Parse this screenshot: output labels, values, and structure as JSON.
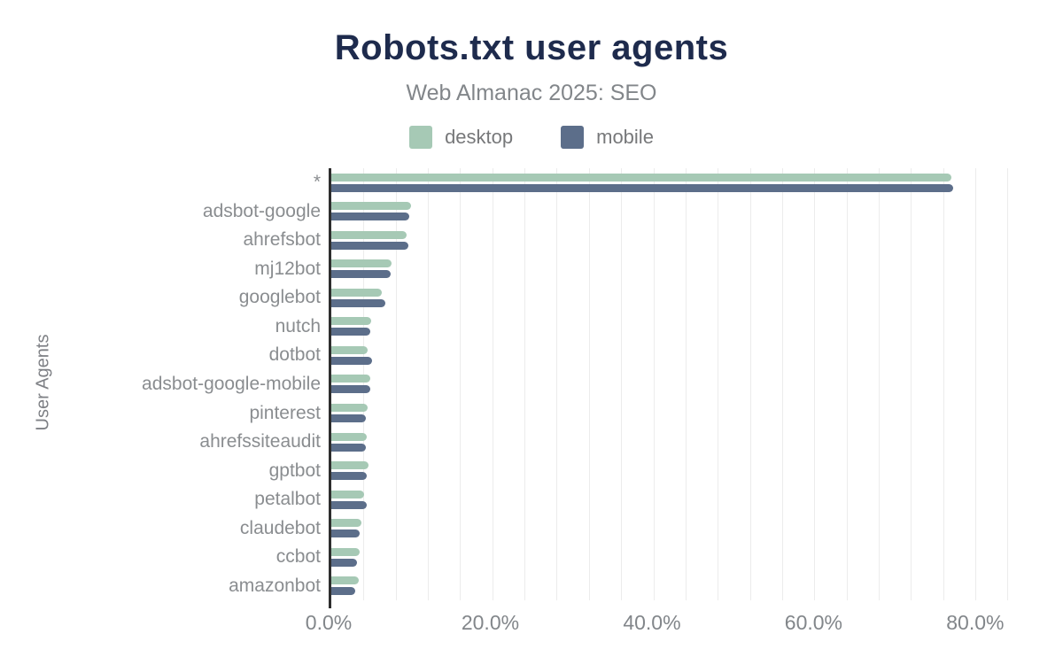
{
  "chart_data": {
    "type": "bar",
    "orientation": "horizontal",
    "title": "Robots.txt user agents",
    "subtitle": "Web Almanac 2025: SEO",
    "ylabel": "User Agents",
    "xlabel": "",
    "categories": [
      "*",
      "adsbot-google",
      "ahrefsbot",
      "mj12bot",
      "googlebot",
      "nutch",
      "dotbot",
      "adsbot-google-mobile",
      "pinterest",
      "ahrefssiteaudit",
      "gptbot",
      "petalbot",
      "claudebot",
      "ccbot",
      "amazonbot"
    ],
    "series": [
      {
        "name": "desktop",
        "color": "#a6c9b5",
        "values": [
          77.0,
          9.9,
          9.4,
          7.5,
          6.3,
          5.0,
          4.5,
          4.8,
          4.5,
          4.4,
          4.6,
          4.1,
          3.7,
          3.5,
          3.4
        ]
      },
      {
        "name": "mobile",
        "color": "#5c6e8a",
        "values": [
          77.2,
          9.7,
          9.6,
          7.4,
          6.7,
          4.8,
          5.1,
          4.8,
          4.3,
          4.3,
          4.4,
          4.4,
          3.5,
          3.2,
          3.0
        ]
      }
    ],
    "x_ticks": [
      "0.0%",
      "20.0%",
      "40.0%",
      "60.0%",
      "80.0%"
    ],
    "x_tick_values": [
      0,
      20,
      40,
      60,
      80
    ],
    "x_max": 84.4,
    "grid_step": 4,
    "grid": true,
    "legend_position": "top",
    "unit": "%"
  },
  "colors": {
    "title": "#1e2b4d",
    "text_gray": "#82868a",
    "axis_line": "#2e2e2e",
    "gridline": "#ececec",
    "desktop": "#a6c9b5",
    "mobile": "#5c6e8a"
  }
}
